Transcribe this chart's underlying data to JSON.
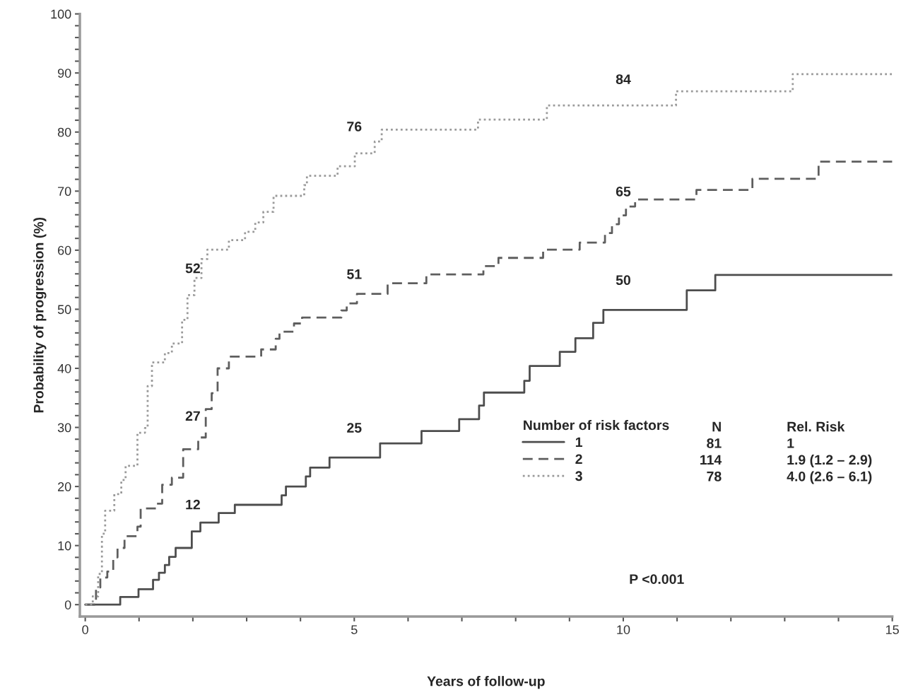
{
  "chart_data": {
    "type": "step",
    "xlabel": "Years of follow-up",
    "ylabel": "Probability of progression (%)",
    "legend_title": "Number of risk factors",
    "legend": "bottom right",
    "grid": false,
    "xlim": [
      -0.1,
      15
    ],
    "xticks": [
      0,
      {
        "value": 1,
        "label": null
      },
      {
        "value": 2,
        "label": null
      },
      {
        "value": 3,
        "label": null
      },
      {
        "value": 4,
        "label": null
      },
      5,
      {
        "value": 6,
        "label": null
      },
      {
        "value": 7,
        "label": null
      },
      {
        "value": 8,
        "label": null
      },
      {
        "value": 9,
        "label": null
      },
      10,
      {
        "value": 11,
        "label": null
      },
      {
        "value": 12,
        "label": null
      },
      {
        "value": 13,
        "label": null
      },
      {
        "value": 14,
        "label": null
      },
      15
    ],
    "ylim": [
      -2,
      100
    ],
    "yticks": [
      0,
      {
        "value": 2,
        "label": null
      },
      {
        "value": 4,
        "label": null
      },
      {
        "value": 6,
        "label": null
      },
      {
        "value": 8,
        "label": null
      },
      10,
      {
        "value": 12,
        "label": null
      },
      {
        "value": 14,
        "label": null
      },
      {
        "value": 16,
        "label": null
      },
      {
        "value": 18,
        "label": null
      },
      20,
      {
        "value": 22,
        "label": null
      },
      {
        "value": 24,
        "label": null
      },
      {
        "value": 26,
        "label": null
      },
      {
        "value": 28,
        "label": null
      },
      30,
      {
        "value": 32,
        "label": null
      },
      {
        "value": 34,
        "label": null
      },
      {
        "value": 36,
        "label": null
      },
      {
        "value": 38,
        "label": null
      },
      40,
      {
        "value": 42,
        "label": null
      },
      {
        "value": 44,
        "label": null
      },
      {
        "value": 46,
        "label": null
      },
      {
        "value": 48,
        "label": null
      },
      50,
      {
        "value": 52,
        "label": null
      },
      {
        "value": 54,
        "label": null
      },
      {
        "value": 56,
        "label": null
      },
      {
        "value": 58,
        "label": null
      },
      60,
      {
        "value": 62,
        "label": null
      },
      {
        "value": 64,
        "label": null
      },
      {
        "value": 66,
        "label": null
      },
      {
        "value": 68,
        "label": null
      },
      70,
      {
        "value": 72,
        "label": null
      },
      {
        "value": 74,
        "label": null
      },
      {
        "value": 76,
        "label": null
      },
      {
        "value": 78,
        "label": null
      },
      80,
      {
        "value": 82,
        "label": null
      },
      {
        "value": 84,
        "label": null
      },
      {
        "value": 86,
        "label": null
      },
      {
        "value": 88,
        "label": null
      },
      90,
      {
        "value": 92,
        "label": null
      },
      {
        "value": 94,
        "label": null
      },
      {
        "value": 96,
        "label": null
      },
      {
        "value": 98,
        "label": null
      },
      100
    ],
    "series": [
      {
        "name": "1",
        "color": "#4d4d4d",
        "line_style": "solid",
        "x": [
          0,
          0.65,
          0.99,
          1.26,
          1.37,
          1.48,
          1.56,
          1.68,
          1.98,
          2.14,
          2.48,
          2.78,
          3.65,
          3.73,
          4.1,
          4.18,
          4.54,
          5.48,
          6.25,
          6.95,
          7.32,
          7.41,
          8.16,
          8.26,
          8.82,
          9.11,
          9.44,
          9.63,
          11.18,
          11.71,
          15
        ],
        "values": [
          0,
          1.3,
          2.6,
          4.2,
          5.4,
          6.7,
          8.1,
          9.6,
          12.4,
          13.9,
          15.5,
          16.9,
          18.5,
          20.0,
          21.7,
          23.2,
          24.9,
          27.3,
          29.4,
          31.4,
          33.7,
          35.9,
          37.9,
          40.4,
          42.8,
          45.1,
          47.7,
          49.9,
          53.2,
          55.8,
          55.8
        ]
      },
      {
        "name": "2",
        "color": "#5e5e5e",
        "line_style": "dashed",
        "x": [
          0,
          0.2,
          0.28,
          0.41,
          0.52,
          0.6,
          0.73,
          0.97,
          1.03,
          1.33,
          1.43,
          1.61,
          1.82,
          2.1,
          2.24,
          2.35,
          2.46,
          2.67,
          3.27,
          3.54,
          3.61,
          3.88,
          4.03,
          4.76,
          4.86,
          5.05,
          5.62,
          6.34,
          7.4,
          7.68,
          8.51,
          9.19,
          9.66,
          9.79,
          9.92,
          10.05,
          10.22,
          11.36,
          12.4,
          13.63,
          15
        ],
        "values": [
          0,
          2.9,
          4.6,
          5.6,
          8.0,
          9.6,
          11.6,
          13.2,
          16.3,
          17.1,
          20.3,
          21.5,
          26.3,
          28.3,
          33.1,
          35.8,
          40.0,
          42.0,
          43.2,
          45.0,
          46.2,
          47.6,
          48.6,
          49.8,
          51.0,
          52.6,
          54.4,
          55.9,
          57.3,
          58.7,
          60.1,
          61.3,
          62.9,
          64.4,
          65.9,
          67.4,
          68.6,
          70.2,
          72.1,
          75.0,
          75.0
        ]
      },
      {
        "name": "3",
        "color": "#9a9a9a",
        "line_style": "dotted",
        "x": [
          0,
          0.14,
          0.24,
          0.31,
          0.37,
          0.54,
          0.67,
          0.75,
          0.97,
          1.11,
          1.16,
          1.24,
          1.48,
          1.61,
          1.8,
          1.9,
          2.03,
          2.16,
          2.27,
          2.67,
          2.97,
          3.16,
          3.31,
          3.5,
          4.07,
          4.12,
          4.69,
          5.01,
          5.38,
          5.51,
          7.3,
          8.58,
          10.98,
          13.15,
          15
        ],
        "values": [
          0,
          1.4,
          5.2,
          12.0,
          15.9,
          18.7,
          21.1,
          23.5,
          29.1,
          29.9,
          37.0,
          41.0,
          42.6,
          44.2,
          48.2,
          52.4,
          55.3,
          58.5,
          60.1,
          61.7,
          63.1,
          64.7,
          66.5,
          69.2,
          71.0,
          72.6,
          74.2,
          76.4,
          78.4,
          80.4,
          82.1,
          84.5,
          86.9,
          89.8,
          89.8
        ]
      }
    ],
    "annotations": [
      {
        "text": "12",
        "x": 2,
        "y": 12
      },
      {
        "text": "25",
        "x": 5,
        "y": 25
      },
      {
        "text": "50",
        "x": 10,
        "y": 50
      },
      {
        "text": "27",
        "x": 2,
        "y": 27
      },
      {
        "text": "51",
        "x": 5,
        "y": 51
      },
      {
        "text": "65",
        "x": 10,
        "y": 65
      },
      {
        "text": "52",
        "x": 2,
        "y": 52
      },
      {
        "text": "76",
        "x": 5,
        "y": 76
      },
      {
        "text": "84",
        "x": 10,
        "y": 84
      },
      "N",
      "Rel. Risk",
      "81",
      "1",
      "114",
      "1.9 (1.2 – 2.9)",
      "78",
      "4.0 (2.6 – 6.1)",
      "P <0.001"
    ]
  }
}
